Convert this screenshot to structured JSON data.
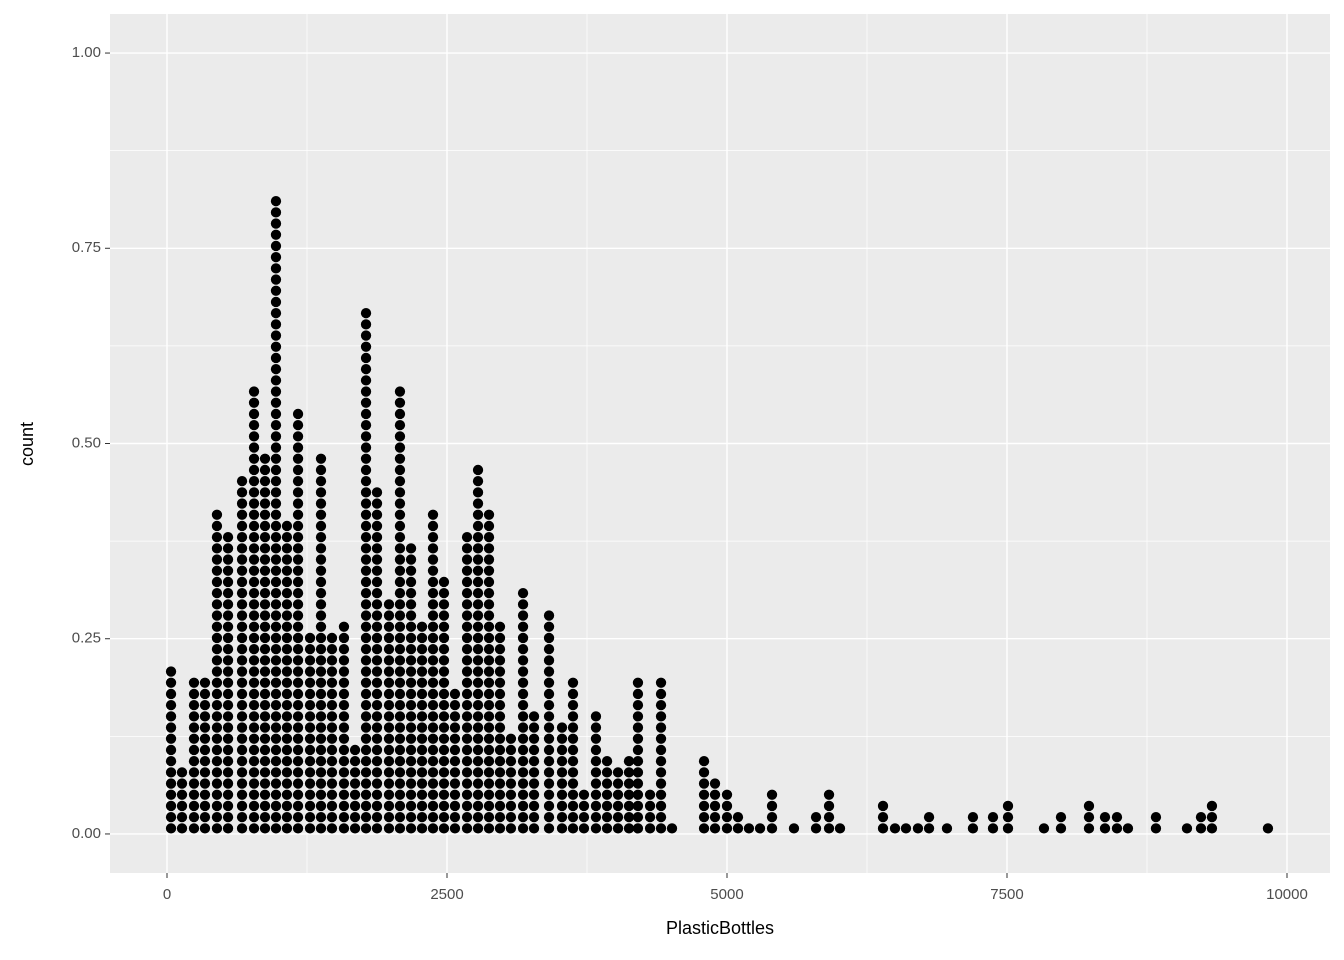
{
  "chart_data": {
    "type": "dotplot",
    "x_label": "PlasticBottles",
    "y_label": "count",
    "color": "#000000",
    "binwidth": 100,
    "x": [
      36,
      134,
      241,
      339,
      446,
      545,
      670,
      777,
      875,
      973,
      1071,
      1170,
      1277,
      1375,
      1473,
      1580,
      1679,
      1777,
      1875,
      1982,
      2080,
      2179,
      2277,
      2375,
      2473,
      2571,
      2679,
      2777,
      2875,
      2973,
      3071,
      3179,
      3277,
      3411,
      3527,
      3625,
      3723,
      3830,
      3929,
      4027,
      4125,
      4205,
      4313,
      4411,
      4509,
      4795,
      4893,
      5000,
      5098,
      5196,
      5295,
      5402,
      5598,
      5795,
      5911,
      6009,
      6393,
      6500,
      6598,
      6705,
      6804,
      6964,
      7196,
      7375,
      7509,
      7830,
      7982,
      8232,
      8375,
      8482,
      8580,
      8830,
      9107,
      9232,
      9330,
      9830
    ],
    "values": [
      15,
      6,
      14,
      14,
      29,
      27,
      32,
      40,
      34,
      57,
      28,
      38,
      18,
      34,
      18,
      19,
      8,
      47,
      31,
      21,
      40,
      26,
      19,
      29,
      23,
      13,
      27,
      33,
      29,
      19,
      9,
      22,
      11,
      20,
      10,
      14,
      4,
      11,
      7,
      6,
      7,
      14,
      4,
      14,
      1,
      7,
      5,
      4,
      2,
      1,
      1,
      4,
      1,
      2,
      4,
      1,
      3,
      1,
      1,
      1,
      2,
      1,
      2,
      2,
      3,
      1,
      2,
      3,
      2,
      2,
      1,
      2,
      1,
      2,
      3,
      1
    ],
    "xlim": [
      -509,
      10384
    ],
    "ylim": [
      -0.05,
      1.05
    ],
    "xticks": [
      0,
      2500,
      5000,
      7500,
      10000
    ],
    "yticks": [
      {
        "value": 0,
        "label": "0.00"
      },
      {
        "value": 0.25,
        "label": "0.25"
      },
      {
        "value": 0.5,
        "label": "0.50"
      },
      {
        "value": 0.75,
        "label": "0.75"
      },
      {
        "value": 1,
        "label": "1.00"
      }
    ],
    "grid": true
  }
}
